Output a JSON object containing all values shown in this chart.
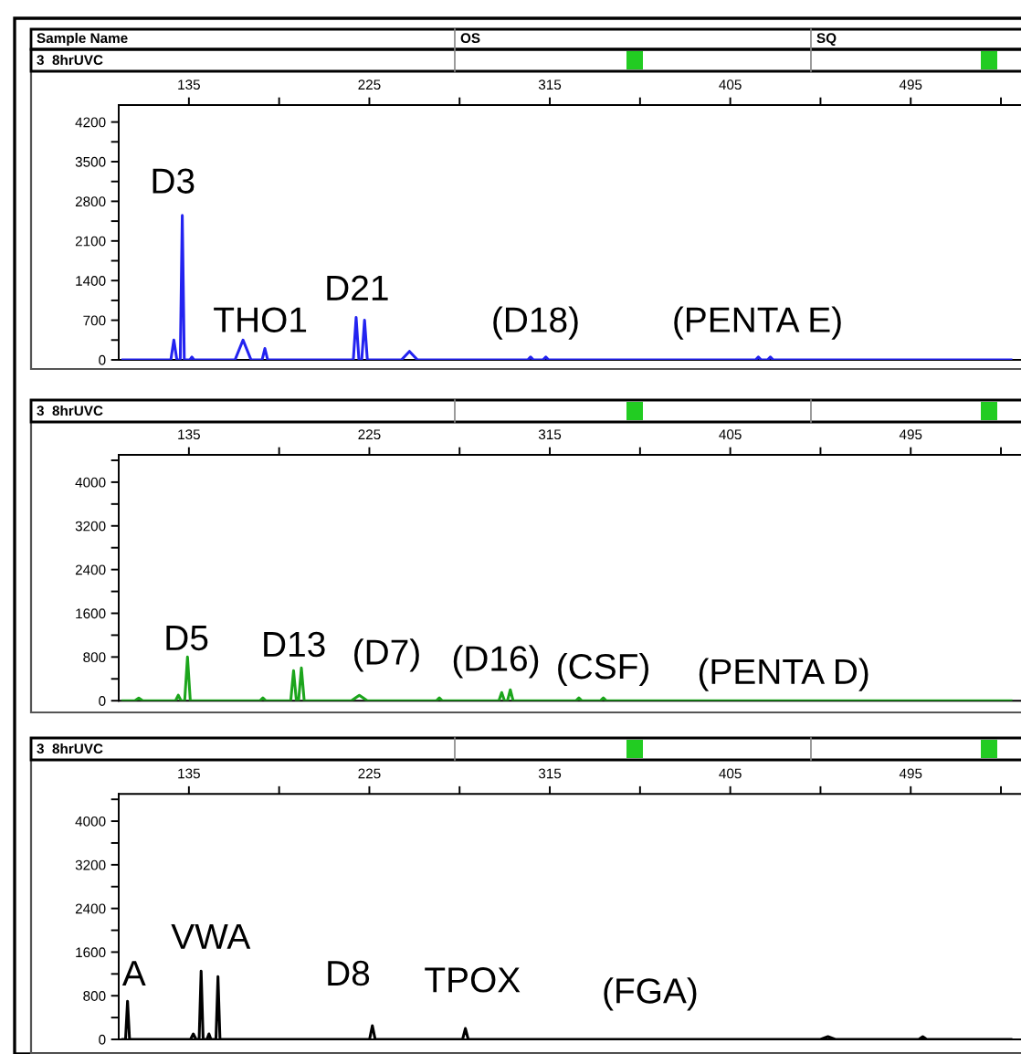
{
  "chart_data": [
    {
      "type": "line",
      "xlim": [
        100,
        550
      ],
      "ylim": [
        0,
        4500
      ],
      "xticks": [
        {
          "value": 135,
          "label": "135"
        },
        {
          "value": 180,
          "label": null
        },
        {
          "value": 225,
          "label": "225"
        },
        {
          "value": 270,
          "label": null
        },
        {
          "value": 315,
          "label": "315"
        },
        {
          "value": 360,
          "label": null
        },
        {
          "value": 405,
          "label": "405"
        },
        {
          "value": 450,
          "label": null
        },
        {
          "value": 495,
          "label": "495"
        },
        {
          "value": 540,
          "label": null
        }
      ],
      "yticks": [
        0,
        {
          "value": 350,
          "label": null
        },
        700,
        {
          "value": 1050,
          "label": null
        },
        1400,
        {
          "value": 1750,
          "label": null
        },
        2100,
        {
          "value": 2450,
          "label": null
        },
        2800,
        {
          "value": 3150,
          "label": null
        },
        3500,
        {
          "value": 3850,
          "label": null
        },
        4200
      ],
      "grid": false,
      "marker": "none",
      "line_style": "solid",
      "series": [
        {
          "color": "#2323f0",
          "x": [
            102,
            126,
            127.5,
            129,
            130.7,
            131.7,
            132.7,
            135.5,
            136.5,
            137.5,
            158,
            162,
            166,
            171.5,
            172.9,
            174.3,
            217,
            218.4,
            219.8,
            221.2,
            222.6,
            224,
            241,
            245,
            249,
            304,
            305.4,
            306.8,
            311.6,
            313,
            314.4,
            417.6,
            419,
            420.4,
            423.6,
            425,
            426.4,
            545
          ],
          "values": [
            0,
            0,
            350,
            0,
            0,
            2550,
            0,
            0,
            50,
            0,
            0,
            350,
            0,
            0,
            200,
            0,
            0,
            750,
            0,
            0,
            700,
            0,
            0,
            150,
            0,
            0,
            50,
            0,
            0,
            50,
            0,
            0,
            50,
            0,
            0,
            50,
            0,
            0
          ]
        }
      ],
      "annotations": [
        "Sample Name",
        "OS",
        "SQ",
        "3  8hrUVC",
        "D3",
        "THO1",
        "D21",
        "(D18)",
        "(PENTA E)"
      ]
    },
    {
      "type": "line",
      "xlim": [
        100,
        550
      ],
      "ylim": [
        0,
        4500
      ],
      "xticks": [
        {
          "value": 135,
          "label": "135"
        },
        {
          "value": 180,
          "label": null
        },
        {
          "value": 225,
          "label": "225"
        },
        {
          "value": 270,
          "label": null
        },
        {
          "value": 315,
          "label": "315"
        },
        {
          "value": 360,
          "label": null
        },
        {
          "value": 405,
          "label": "405"
        },
        {
          "value": 450,
          "label": null
        },
        {
          "value": 495,
          "label": "495"
        },
        {
          "value": 540,
          "label": null
        }
      ],
      "yticks": [
        0,
        {
          "value": 400,
          "label": null
        },
        800,
        {
          "value": 1200,
          "label": null
        },
        1600,
        {
          "value": 2000,
          "label": null
        },
        2400,
        {
          "value": 2800,
          "label": null
        },
        3200,
        {
          "value": 3600,
          "label": null
        },
        4000,
        {
          "value": 4400,
          "label": null
        }
      ],
      "grid": false,
      "marker": "none",
      "line_style": "solid",
      "series": [
        {
          "color": "#1ca51c",
          "x": [
            102,
            108,
            110,
            112,
            128.3,
            129.7,
            131.1,
            132.9,
            134.3,
            135.7,
            170.5,
            171.9,
            173.3,
            185.8,
            187.2,
            188.6,
            189.7,
            191.1,
            192.5,
            216,
            220,
            224,
            258.5,
            259.9,
            261.3,
            289.6,
            291,
            292.4,
            293.9,
            295.3,
            296.7,
            328.1,
            329.5,
            330.9,
            340.3,
            341.7,
            343.1,
            545
          ],
          "values": [
            0,
            0,
            50,
            0,
            0,
            100,
            0,
            0,
            800,
            0,
            0,
            50,
            0,
            0,
            550,
            0,
            0,
            600,
            0,
            0,
            100,
            0,
            0,
            50,
            0,
            0,
            150,
            0,
            0,
            200,
            0,
            0,
            50,
            0,
            0,
            50,
            0,
            0
          ]
        }
      ],
      "annotations": [
        "3  8hrUVC",
        "D5",
        "D13",
        "(D7)",
        "(D16)",
        "(CSF)",
        "(PENTA D)"
      ]
    },
    {
      "type": "line",
      "xlim": [
        100,
        550
      ],
      "ylim": [
        0,
        4500
      ],
      "xticks": [
        {
          "value": 135,
          "label": "135"
        },
        {
          "value": 180,
          "label": null
        },
        {
          "value": 225,
          "label": "225"
        },
        {
          "value": 270,
          "label": null
        },
        {
          "value": 315,
          "label": "315"
        },
        {
          "value": 360,
          "label": null
        },
        {
          "value": 405,
          "label": "405"
        },
        {
          "value": 450,
          "label": null
        },
        {
          "value": 495,
          "label": "495"
        },
        {
          "value": 540,
          "label": null
        }
      ],
      "yticks": [
        0,
        {
          "value": 400,
          "label": null
        },
        800,
        {
          "value": 1200,
          "label": null
        },
        1600,
        {
          "value": 2000,
          "label": null
        },
        2400,
        {
          "value": 2800,
          "label": null
        },
        3200,
        {
          "value": 3600,
          "label": null
        },
        4000,
        {
          "value": 4400,
          "label": null
        }
      ],
      "grid": false,
      "marker": "none",
      "line_style": "solid",
      "series": [
        {
          "color": "#000000",
          "x": [
            102,
            103.4,
            104.4,
            105.4,
            135.8,
            137.2,
            138.6,
            140.1,
            141.1,
            142.1,
            144,
            145,
            146,
            148.5,
            149.5,
            150.5,
            225.1,
            226.5,
            227.9,
            271.5,
            272.9,
            274.3,
            450,
            453.7,
            457.4,
            499,
            501,
            503,
            545
          ],
          "values": [
            0,
            0,
            700,
            0,
            0,
            100,
            0,
            0,
            1250,
            0,
            0,
            100,
            0,
            0,
            1150,
            0,
            0,
            250,
            0,
            0,
            200,
            0,
            0,
            50,
            0,
            0,
            50,
            0,
            0
          ]
        }
      ],
      "annotations": [
        "3  8hrUVC",
        "A",
        "VWA",
        "D8",
        "TPOX",
        "(FGA)"
      ]
    }
  ]
}
